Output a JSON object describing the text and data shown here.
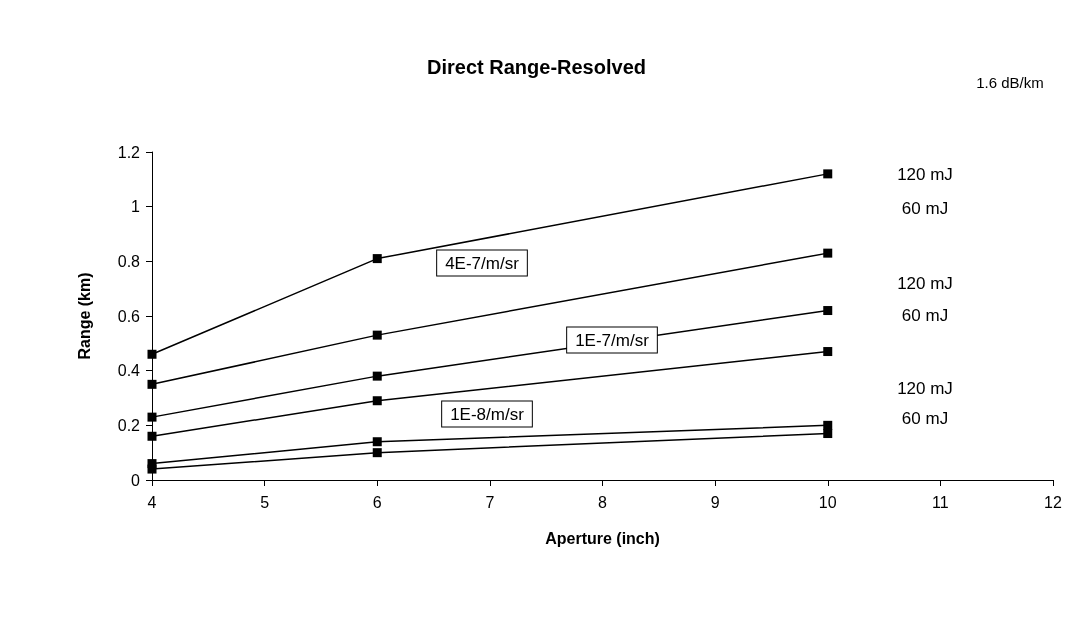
{
  "chart_data": {
    "type": "line",
    "title": "Direct Range-Resolved",
    "xlabel": "Aperture (inch)",
    "ylabel": "Range (km)",
    "x": [
      4,
      6,
      10
    ],
    "series": [
      {
        "color": "#000000",
        "values": [
          0.46,
          0.81,
          1.12
        ]
      },
      {
        "color": "#000000",
        "values": [
          0.35,
          0.53,
          0.83
        ]
      },
      {
        "color": "#000000",
        "values": [
          0.23,
          0.38,
          0.62
        ]
      },
      {
        "color": "#000000",
        "values": [
          0.16,
          0.29,
          0.47
        ]
      },
      {
        "color": "#000000",
        "values": [
          0.06,
          0.14,
          0.2
        ]
      },
      {
        "color": "#000000",
        "values": [
          0.04,
          0.1,
          0.17
        ]
      }
    ],
    "xlim": [
      4,
      12
    ],
    "xticks": [
      4,
      5,
      6,
      7,
      8,
      9,
      10,
      11,
      12
    ],
    "ylim": [
      0,
      1.2
    ],
    "yticks": [
      0,
      0.2,
      0.4,
      0.6,
      0.8,
      1,
      1.2
    ],
    "grid": false,
    "marker": "square",
    "line_style": "solid",
    "annotations": [
      "1.6 dB/km",
      "120 mJ",
      "60 mJ",
      "120 mJ",
      "60 mJ",
      "120 mJ",
      "60 mJ",
      "4E-7/m/sr",
      "1E-7/m/sr",
      "1E-8/m/sr"
    ]
  }
}
